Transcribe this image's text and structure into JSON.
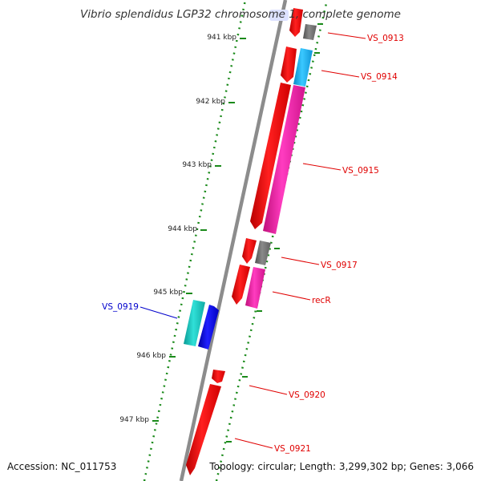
{
  "title": "Vibrio splendidus LGP32 chromosome 1, complete genome",
  "footer": {
    "accession": "Accession: NC_011753",
    "topology": "Topology: circular; Length: 3,299,302 bp; Genes: 3,066"
  },
  "colors": {
    "backbone": "#8c8c8c",
    "cds": "#ff0000",
    "cds_alt": "#ff1aaa",
    "cds_grey": "#707070",
    "cds_light_blue": "#1ab0f0",
    "cds_cyan": "#16c8c0",
    "cds_blue": "#0000ee",
    "ruler": "#1a8a1a",
    "label_forward": "#e00000",
    "label_reverse": "#0000cc"
  },
  "scale": {
    "ticks": [
      "941 kbp",
      "942 kbp",
      "943 kbp",
      "944 kbp",
      "945 kbp",
      "946 kbp",
      "947 kbp"
    ]
  },
  "gene_labels": [
    {
      "name": "VS_0913",
      "strand": "forward"
    },
    {
      "name": "VS_0914",
      "strand": "forward"
    },
    {
      "name": "VS_0915",
      "strand": "forward"
    },
    {
      "name": "VS_0917",
      "strand": "forward"
    },
    {
      "name": "recR",
      "strand": "forward"
    },
    {
      "name": "VS_0919",
      "strand": "reverse"
    },
    {
      "name": "VS_0920",
      "strand": "forward"
    },
    {
      "name": "VS_0921",
      "strand": "forward"
    }
  ]
}
